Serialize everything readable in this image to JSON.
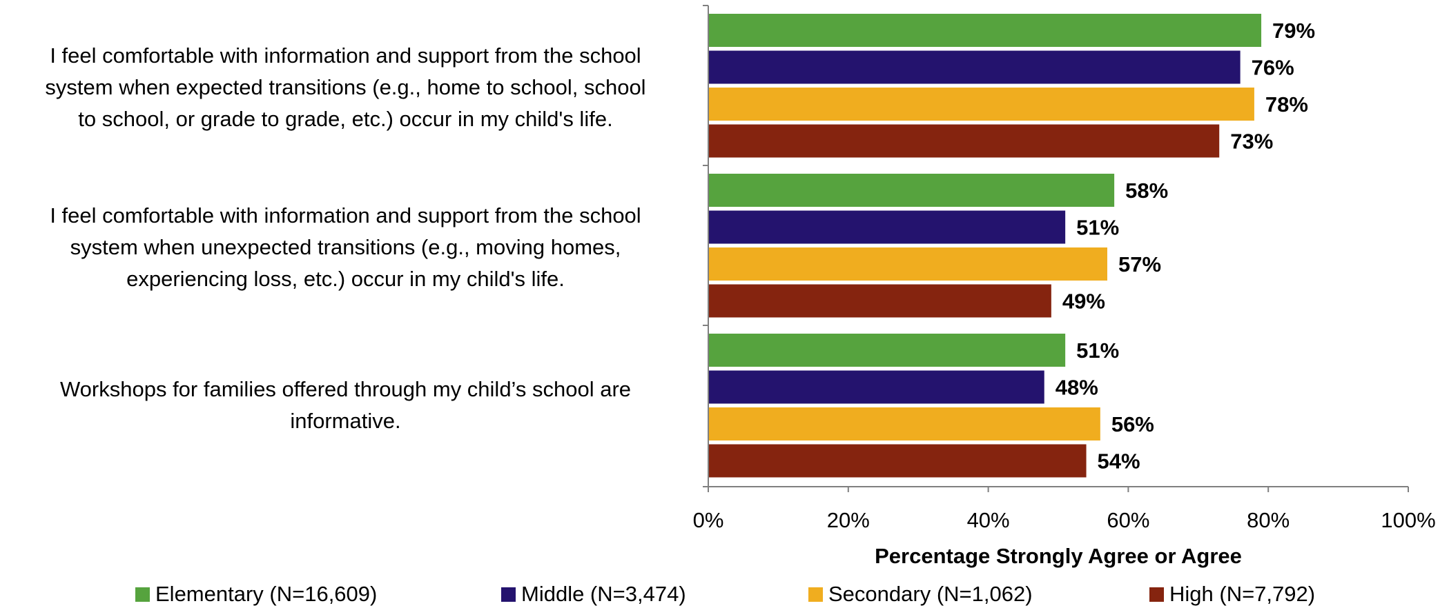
{
  "chart_data": {
    "type": "bar",
    "orientation": "horizontal",
    "categories": [
      "I feel comfortable with information and support from the school system when expected transitions (e.g., home to school, school to school, or grade to grade, etc.) occur in my child's life.",
      "I feel comfortable with information and support from the school system when unexpected transitions (e.g., moving homes, experiencing loss, etc.) occur in my child's life.",
      "Workshops for families offered through my child’s school are informative."
    ],
    "category_lines": [
      [
        "I feel comfortable with information and support from the school",
        "system when expected transitions (e.g., home to school, school",
        "to school, or grade to grade, etc.) occur in my child's life."
      ],
      [
        "I feel comfortable with information and support from the school",
        "system when unexpected transitions (e.g., moving homes,",
        "experiencing loss, etc.) occur in my child's life."
      ],
      [
        "Workshops for families offered through my child’s school are",
        "informative."
      ]
    ],
    "series": [
      {
        "name": "Elementary (N=16,609)",
        "color": "#56A33E",
        "values": [
          79,
          58,
          51
        ]
      },
      {
        "name": "Middle (N=3,474)",
        "color": "#24136E",
        "values": [
          76,
          51,
          48
        ]
      },
      {
        "name": "Secondary (N=1,062)",
        "color": "#F0AD1F",
        "values": [
          78,
          57,
          56
        ]
      },
      {
        "name": "High (N=7,792)",
        "color": "#85240F",
        "values": [
          73,
          49,
          54
        ]
      }
    ],
    "value_labels": [
      [
        "79%",
        "58%",
        "51%"
      ],
      [
        "76%",
        "51%",
        "48%"
      ],
      [
        "78%",
        "57%",
        "56%"
      ],
      [
        "73%",
        "49%",
        "54%"
      ]
    ],
    "xlabel": "Percentage Strongly Agree or Agree",
    "xlim": [
      0,
      100
    ],
    "xticks": [
      "0%",
      "20%",
      "40%",
      "60%",
      "80%",
      "100%"
    ],
    "grid": false,
    "legend_position": "bottom"
  }
}
